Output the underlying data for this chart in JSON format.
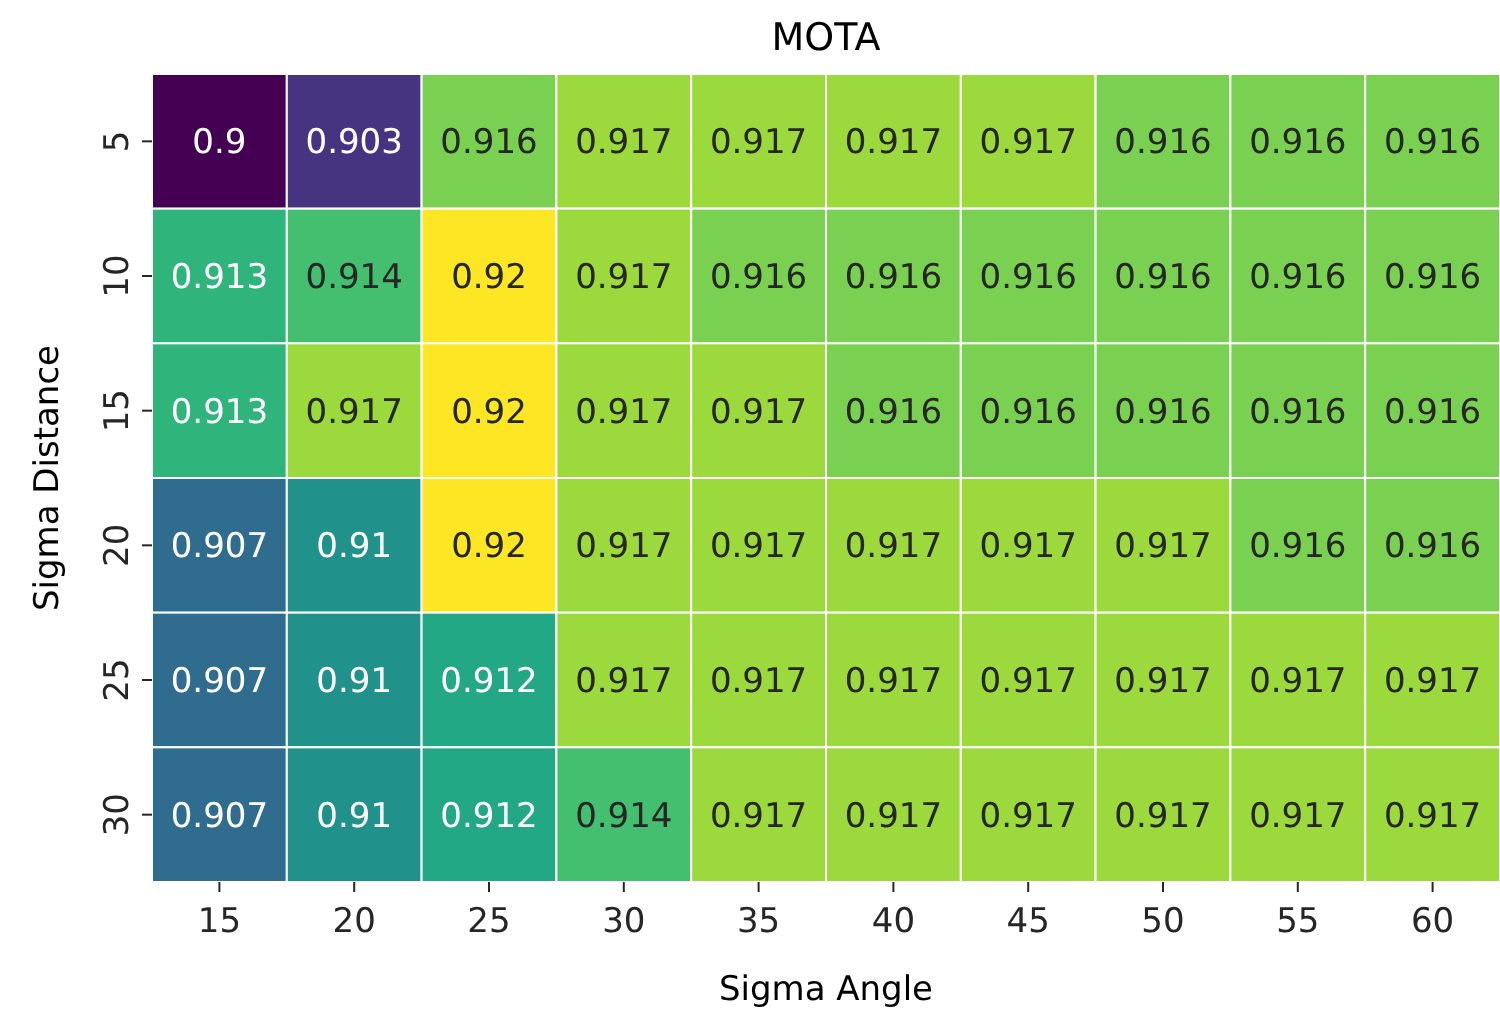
{
  "chart_data": {
    "type": "heatmap",
    "title": "MOTA",
    "xlabel": "Sigma Angle",
    "ylabel": "Sigma Distance",
    "categories": [
      "15",
      "20",
      "25",
      "30",
      "35",
      "40",
      "45",
      "50",
      "55",
      "60"
    ],
    "y_categories": [
      "5",
      "10",
      "15",
      "20",
      "25",
      "30"
    ],
    "cells": [
      [
        0.9,
        0.903,
        0.916,
        0.917,
        0.917,
        0.917,
        0.917,
        0.916,
        0.916,
        0.916
      ],
      [
        0.913,
        0.914,
        0.92,
        0.917,
        0.916,
        0.916,
        0.916,
        0.916,
        0.916,
        0.916
      ],
      [
        0.913,
        0.917,
        0.92,
        0.917,
        0.917,
        0.916,
        0.916,
        0.916,
        0.916,
        0.916
      ],
      [
        0.907,
        0.91,
        0.92,
        0.917,
        0.917,
        0.917,
        0.917,
        0.917,
        0.916,
        0.916
      ],
      [
        0.907,
        0.91,
        0.912,
        0.917,
        0.917,
        0.917,
        0.917,
        0.917,
        0.917,
        0.917
      ],
      [
        0.907,
        0.91,
        0.912,
        0.914,
        0.917,
        0.917,
        0.917,
        0.917,
        0.917,
        0.917
      ]
    ],
    "data_labels": true
  }
}
